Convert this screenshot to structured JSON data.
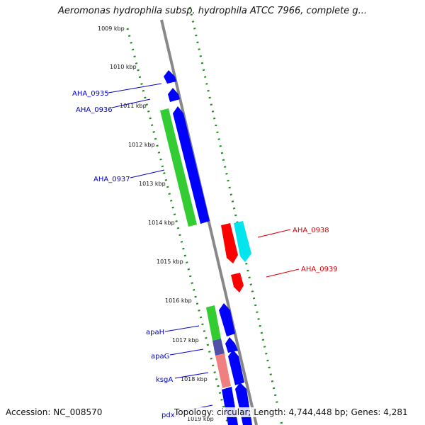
{
  "title": "Aeromonas hydrophila subsp. hydrophila ATCC 7966, complete g...",
  "footer": {
    "accession": "Accession: NC_008570",
    "summary": "Topology: circular; Length: 4,744,448 bp; Genes: 4,281"
  },
  "colors": {
    "background": "#ffffff",
    "backbone": "#888888",
    "dotted_track": "#1a8a1a",
    "forward_strand_cds": "#0000ff",
    "forward_strand_rna": "#33cc33",
    "reverse_strand_cds": "#ff0000",
    "reverse_strand_rna": "#00e5ee",
    "label_forward": "#0000cc",
    "label_reverse": "#dd0000",
    "purple_segment": "#5050a8",
    "pink_segment": "#f08080"
  },
  "ticks": [
    "1009 kbp",
    "1010 kbp",
    "1011 kbp",
    "1012 kbp",
    "1013 kbp",
    "1014 kbp",
    "1015 kbp",
    "1016 kbp",
    "1017 kbp",
    "1018 kbp",
    "1019 kbp"
  ],
  "genes": {
    "forward": [
      "AHA_0935",
      "AHA_0936",
      "AHA_0937",
      "apaH",
      "apaG",
      "ksgA",
      "pdxA"
    ],
    "reverse": [
      "AHA_0938",
      "AHA_0939"
    ]
  }
}
